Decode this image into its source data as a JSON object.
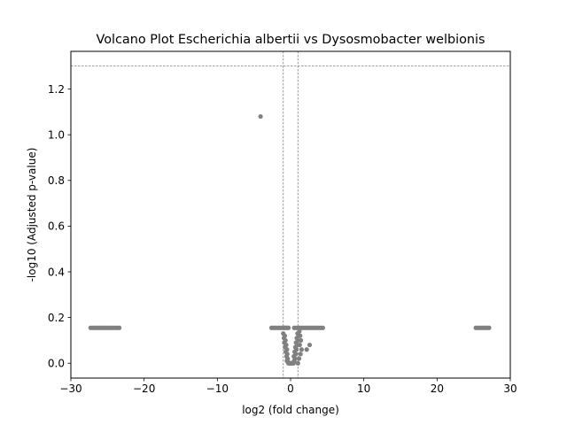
{
  "chart_data": {
    "type": "scatter",
    "title": "Volcano Plot Escherichia albertii vs Dysosmobacter welbionis",
    "xlabel": "log2 (fold change)",
    "ylabel": "-log10 (Adjusted p-value)",
    "xlim": [
      -30,
      30
    ],
    "ylim": [
      -0.065,
      1.365
    ],
    "xticks": [
      -30,
      -20,
      -10,
      0,
      10,
      20,
      30
    ],
    "xtick_labels": [
      "−30",
      "−20",
      "−10",
      "0",
      "10",
      "20",
      "30"
    ],
    "yticks": [
      0.0,
      0.2,
      0.4,
      0.6,
      0.8,
      1.0,
      1.2
    ],
    "ytick_labels": [
      "0.0",
      "0.2",
      "0.4",
      "0.6",
      "0.8",
      "1.0",
      "1.2"
    ],
    "grid": false,
    "marker_color": "#808080",
    "threshold_color": "#808080",
    "thresholds": {
      "horizontal": [
        1.301
      ],
      "vertical": [
        -1,
        1
      ]
    },
    "series": [
      {
        "points": [
          [
            -27.3,
            0.155
          ],
          [
            -27.0,
            0.155
          ],
          [
            -26.7,
            0.155
          ],
          [
            -26.4,
            0.155
          ],
          [
            -26.1,
            0.155
          ],
          [
            -25.8,
            0.155
          ],
          [
            -25.5,
            0.155
          ],
          [
            -25.2,
            0.155
          ],
          [
            -24.9,
            0.155
          ],
          [
            -24.6,
            0.155
          ],
          [
            -24.3,
            0.155
          ],
          [
            -24.0,
            0.155
          ],
          [
            -23.7,
            0.155
          ],
          [
            -23.4,
            0.155
          ],
          [
            -4.1,
            1.08
          ],
          [
            -2.6,
            0.155
          ],
          [
            -2.3,
            0.155
          ],
          [
            -2.0,
            0.155
          ],
          [
            -1.7,
            0.155
          ],
          [
            -1.4,
            0.155
          ],
          [
            -1.1,
            0.155
          ],
          [
            -0.9,
            0.155
          ],
          [
            -0.7,
            0.155
          ],
          [
            -0.5,
            0.155
          ],
          [
            -0.3,
            0.155
          ],
          [
            -1.0,
            0.13
          ],
          [
            -0.8,
            0.12
          ],
          [
            -0.9,
            0.11
          ],
          [
            -0.7,
            0.1
          ],
          [
            -0.85,
            0.09
          ],
          [
            -0.6,
            0.08
          ],
          [
            -0.75,
            0.07
          ],
          [
            -0.5,
            0.06
          ],
          [
            -0.65,
            0.05
          ],
          [
            -0.45,
            0.04
          ],
          [
            -0.55,
            0.03
          ],
          [
            -0.4,
            0.02
          ],
          [
            -0.5,
            0.01
          ],
          [
            -0.35,
            0.005
          ],
          [
            -0.3,
            0.0
          ],
          [
            -0.2,
            0.0
          ],
          [
            -0.1,
            0.0
          ],
          [
            0.0,
            0.0
          ],
          [
            0.1,
            0.0
          ],
          [
            0.2,
            0.0
          ],
          [
            0.3,
            0.0
          ],
          [
            0.4,
            0.0
          ],
          [
            0.5,
            0.01
          ],
          [
            0.6,
            0.02
          ],
          [
            0.45,
            0.03
          ],
          [
            0.7,
            0.04
          ],
          [
            0.55,
            0.05
          ],
          [
            0.8,
            0.06
          ],
          [
            0.65,
            0.07
          ],
          [
            0.9,
            0.08
          ],
          [
            0.75,
            0.09
          ],
          [
            1.0,
            0.1
          ],
          [
            0.85,
            0.11
          ],
          [
            1.1,
            0.12
          ],
          [
            0.95,
            0.13
          ],
          [
            1.2,
            0.14
          ],
          [
            1.3,
            0.12
          ],
          [
            1.4,
            0.1
          ],
          [
            1.25,
            0.08
          ],
          [
            1.5,
            0.06
          ],
          [
            1.35,
            0.04
          ],
          [
            1.15,
            0.02
          ],
          [
            1.0,
            0.0
          ],
          [
            0.5,
            0.155
          ],
          [
            0.8,
            0.155
          ],
          [
            1.1,
            0.155
          ],
          [
            1.4,
            0.155
          ],
          [
            1.7,
            0.155
          ],
          [
            2.0,
            0.155
          ],
          [
            2.3,
            0.155
          ],
          [
            2.6,
            0.155
          ],
          [
            2.9,
            0.155
          ],
          [
            3.2,
            0.155
          ],
          [
            3.5,
            0.155
          ],
          [
            3.8,
            0.155
          ],
          [
            4.1,
            0.155
          ],
          [
            4.4,
            0.155
          ],
          [
            2.2,
            0.06
          ],
          [
            2.6,
            0.08
          ],
          [
            25.3,
            0.155
          ],
          [
            25.6,
            0.155
          ],
          [
            25.9,
            0.155
          ],
          [
            26.2,
            0.155
          ],
          [
            26.5,
            0.155
          ],
          [
            26.8,
            0.155
          ],
          [
            27.1,
            0.155
          ]
        ]
      }
    ]
  }
}
